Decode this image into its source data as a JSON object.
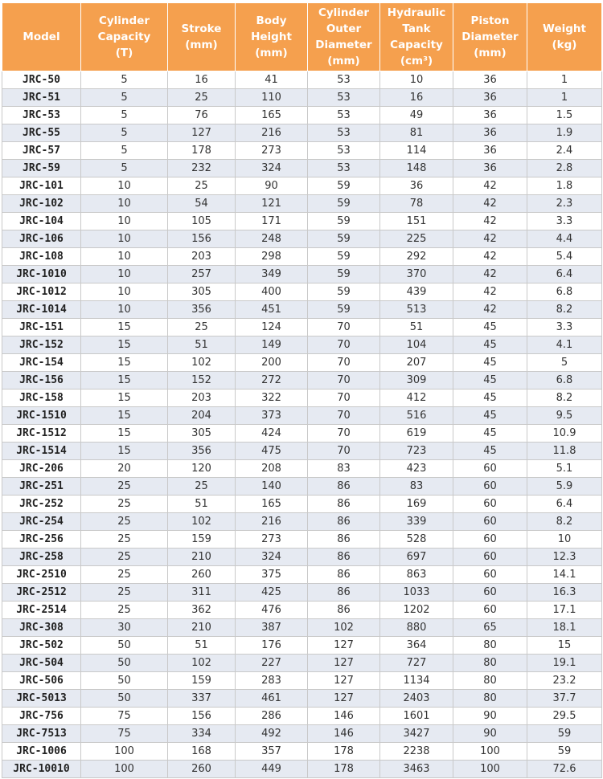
{
  "table": {
    "header": [
      [
        "Model"
      ],
      [
        "Cylinder",
        "Capacity",
        "(T)"
      ],
      [
        "Stroke",
        "(mm)"
      ],
      [
        "Body",
        "Height",
        "(mm)"
      ],
      [
        "Cylinder",
        "Outer",
        "Diameter",
        "(mm)"
      ],
      [
        "Hydraulic",
        "Tank",
        "Capacity",
        "(cm³)"
      ],
      [
        "Piston",
        "Diameter",
        "(mm)"
      ],
      [
        "Weight",
        "(kg)"
      ]
    ],
    "rows": [
      [
        "JRC-50",
        "5",
        "16",
        "41",
        "53",
        "10",
        "36",
        "1"
      ],
      [
        "JRC-51",
        "5",
        "25",
        "110",
        "53",
        "16",
        "36",
        "1"
      ],
      [
        "JRC-53",
        "5",
        "76",
        "165",
        "53",
        "49",
        "36",
        "1.5"
      ],
      [
        "JRC-55",
        "5",
        "127",
        "216",
        "53",
        "81",
        "36",
        "1.9"
      ],
      [
        "JRC-57",
        "5",
        "178",
        "273",
        "53",
        "114",
        "36",
        "2.4"
      ],
      [
        "JRC-59",
        "5",
        "232",
        "324",
        "53",
        "148",
        "36",
        "2.8"
      ],
      [
        "JRC-101",
        "10",
        "25",
        "90",
        "59",
        "36",
        "42",
        "1.8"
      ],
      [
        "JRC-102",
        "10",
        "54",
        "121",
        "59",
        "78",
        "42",
        "2.3"
      ],
      [
        "JRC-104",
        "10",
        "105",
        "171",
        "59",
        "151",
        "42",
        "3.3"
      ],
      [
        "JRC-106",
        "10",
        "156",
        "248",
        "59",
        "225",
        "42",
        "4.4"
      ],
      [
        "JRC-108",
        "10",
        "203",
        "298",
        "59",
        "292",
        "42",
        "5.4"
      ],
      [
        "JRC-1010",
        "10",
        "257",
        "349",
        "59",
        "370",
        "42",
        "6.4"
      ],
      [
        "JRC-1012",
        "10",
        "305",
        "400",
        "59",
        "439",
        "42",
        "6.8"
      ],
      [
        "JRC-1014",
        "10",
        "356",
        "451",
        "59",
        "513",
        "42",
        "8.2"
      ],
      [
        "JRC-151",
        "15",
        "25",
        "124",
        "70",
        "51",
        "45",
        "3.3"
      ],
      [
        "JRC-152",
        "15",
        "51",
        "149",
        "70",
        "104",
        "45",
        "4.1"
      ],
      [
        "JRC-154",
        "15",
        "102",
        "200",
        "70",
        "207",
        "45",
        "5"
      ],
      [
        "JRC-156",
        "15",
        "152",
        "272",
        "70",
        "309",
        "45",
        "6.8"
      ],
      [
        "JRC-158",
        "15",
        "203",
        "322",
        "70",
        "412",
        "45",
        "8.2"
      ],
      [
        "JRC-1510",
        "15",
        "204",
        "373",
        "70",
        "516",
        "45",
        "9.5"
      ],
      [
        "JRC-1512",
        "15",
        "305",
        "424",
        "70",
        "619",
        "45",
        "10.9"
      ],
      [
        "JRC-1514",
        "15",
        "356",
        "475",
        "70",
        "723",
        "45",
        "11.8"
      ],
      [
        "JRC-206",
        "20",
        "120",
        "208",
        "83",
        "423",
        "60",
        "5.1"
      ],
      [
        "JRC-251",
        "25",
        "25",
        "140",
        "86",
        "83",
        "60",
        "5.9"
      ],
      [
        "JRC-252",
        "25",
        "51",
        "165",
        "86",
        "169",
        "60",
        "6.4"
      ],
      [
        "JRC-254",
        "25",
        "102",
        "216",
        "86",
        "339",
        "60",
        "8.2"
      ],
      [
        "JRC-256",
        "25",
        "159",
        "273",
        "86",
        "528",
        "60",
        "10"
      ],
      [
        "JRC-258",
        "25",
        "210",
        "324",
        "86",
        "697",
        "60",
        "12.3"
      ],
      [
        "JRC-2510",
        "25",
        "260",
        "375",
        "86",
        "863",
        "60",
        "14.1"
      ],
      [
        "JRC-2512",
        "25",
        "311",
        "425",
        "86",
        "1033",
        "60",
        "16.3"
      ],
      [
        "JRC-2514",
        "25",
        "362",
        "476",
        "86",
        "1202",
        "60",
        "17.1"
      ],
      [
        "JRC-308",
        "30",
        "210",
        "387",
        "102",
        "880",
        "65",
        "18.1"
      ],
      [
        "JRC-502",
        "50",
        "51",
        "176",
        "127",
        "364",
        "80",
        "15"
      ],
      [
        "JRC-504",
        "50",
        "102",
        "227",
        "127",
        "727",
        "80",
        "19.1"
      ],
      [
        "JRC-506",
        "50",
        "159",
        "283",
        "127",
        "1134",
        "80",
        "23.2"
      ],
      [
        "JRC-5013",
        "50",
        "337",
        "461",
        "127",
        "2403",
        "80",
        "37.7"
      ],
      [
        "JRC-756",
        "75",
        "156",
        "286",
        "146",
        "1601",
        "90",
        "29.5"
      ],
      [
        "JRC-7513",
        "75",
        "334",
        "492",
        "146",
        "3427",
        "90",
        "59"
      ],
      [
        "JRC-1006",
        "100",
        "168",
        "357",
        "178",
        "2238",
        "100",
        "59"
      ],
      [
        "JRC-10010",
        "100",
        "260",
        "449",
        "178",
        "3463",
        "100",
        "72.6"
      ]
    ]
  }
}
